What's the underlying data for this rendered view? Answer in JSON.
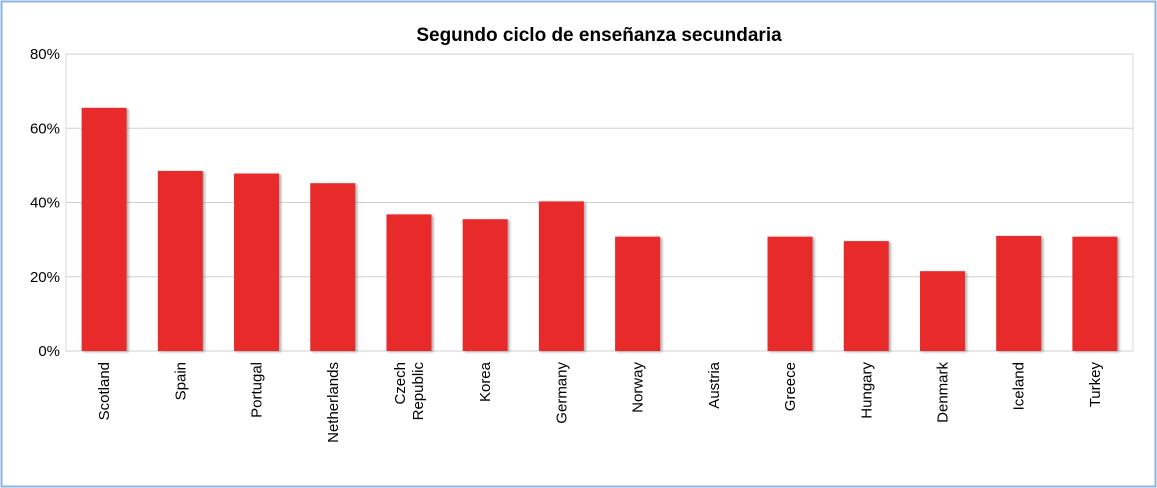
{
  "chart_data": {
    "type": "bar",
    "title": "Segundo ciclo de enseñanza secundaria",
    "categories": [
      "Scotland",
      "Spain",
      "Portugal",
      "Netherlands",
      "Czech Republic",
      "Korea",
      "Germany",
      "Norway",
      "Austria",
      "Greece",
      "Hungary",
      "Denmark",
      "Iceland",
      "Turkey"
    ],
    "values": [
      65.5,
      48.5,
      47.8,
      45.2,
      36.8,
      35.5,
      40.3,
      30.8,
      null,
      30.8,
      29.6,
      21.5,
      31.0,
      30.8
    ],
    "color": "#e8292b",
    "ylim": [
      0,
      80
    ],
    "yticks": [
      {
        "value": 0,
        "label": "0%"
      },
      {
        "value": 20,
        "label": "20%"
      },
      {
        "value": 40,
        "label": "40%"
      },
      {
        "value": 60,
        "label": "60%"
      },
      {
        "value": 80,
        "label": "80%"
      }
    ],
    "grid": true
  }
}
